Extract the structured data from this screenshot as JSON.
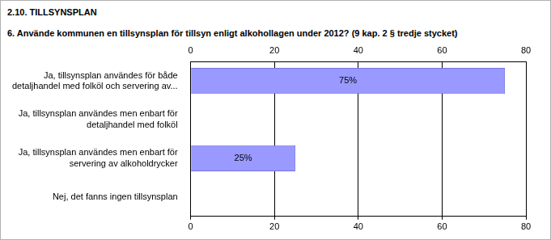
{
  "chart_data": {
    "type": "bar",
    "orientation": "horizontal",
    "title": "2.10. TILLSYNSPLAN",
    "subtitle": "6. Använde kommunen en tillsynsplan för  tillsyn enligt alkohollagen under 2012? (9 kap. 2 § tredje stycket)",
    "categories": [
      "Ja, tillsynsplan användes för både detaljhandel med folköl och servering av...",
      "Ja, tillsynsplan användes men enbart för detaljhandel med folköl",
      "Ja, tillsynsplan användes men enbart för servering av alkoholdrycker",
      "Nej, det fanns ingen tillsynsplan"
    ],
    "values": [
      75,
      0,
      25,
      0
    ],
    "value_labels": [
      "75%",
      null,
      "25%",
      null
    ],
    "data_labels": true,
    "color": "#9999ff",
    "xlim": [
      0,
      80
    ],
    "xticks": [
      0,
      20,
      40,
      60,
      80
    ],
    "grid": true
  }
}
